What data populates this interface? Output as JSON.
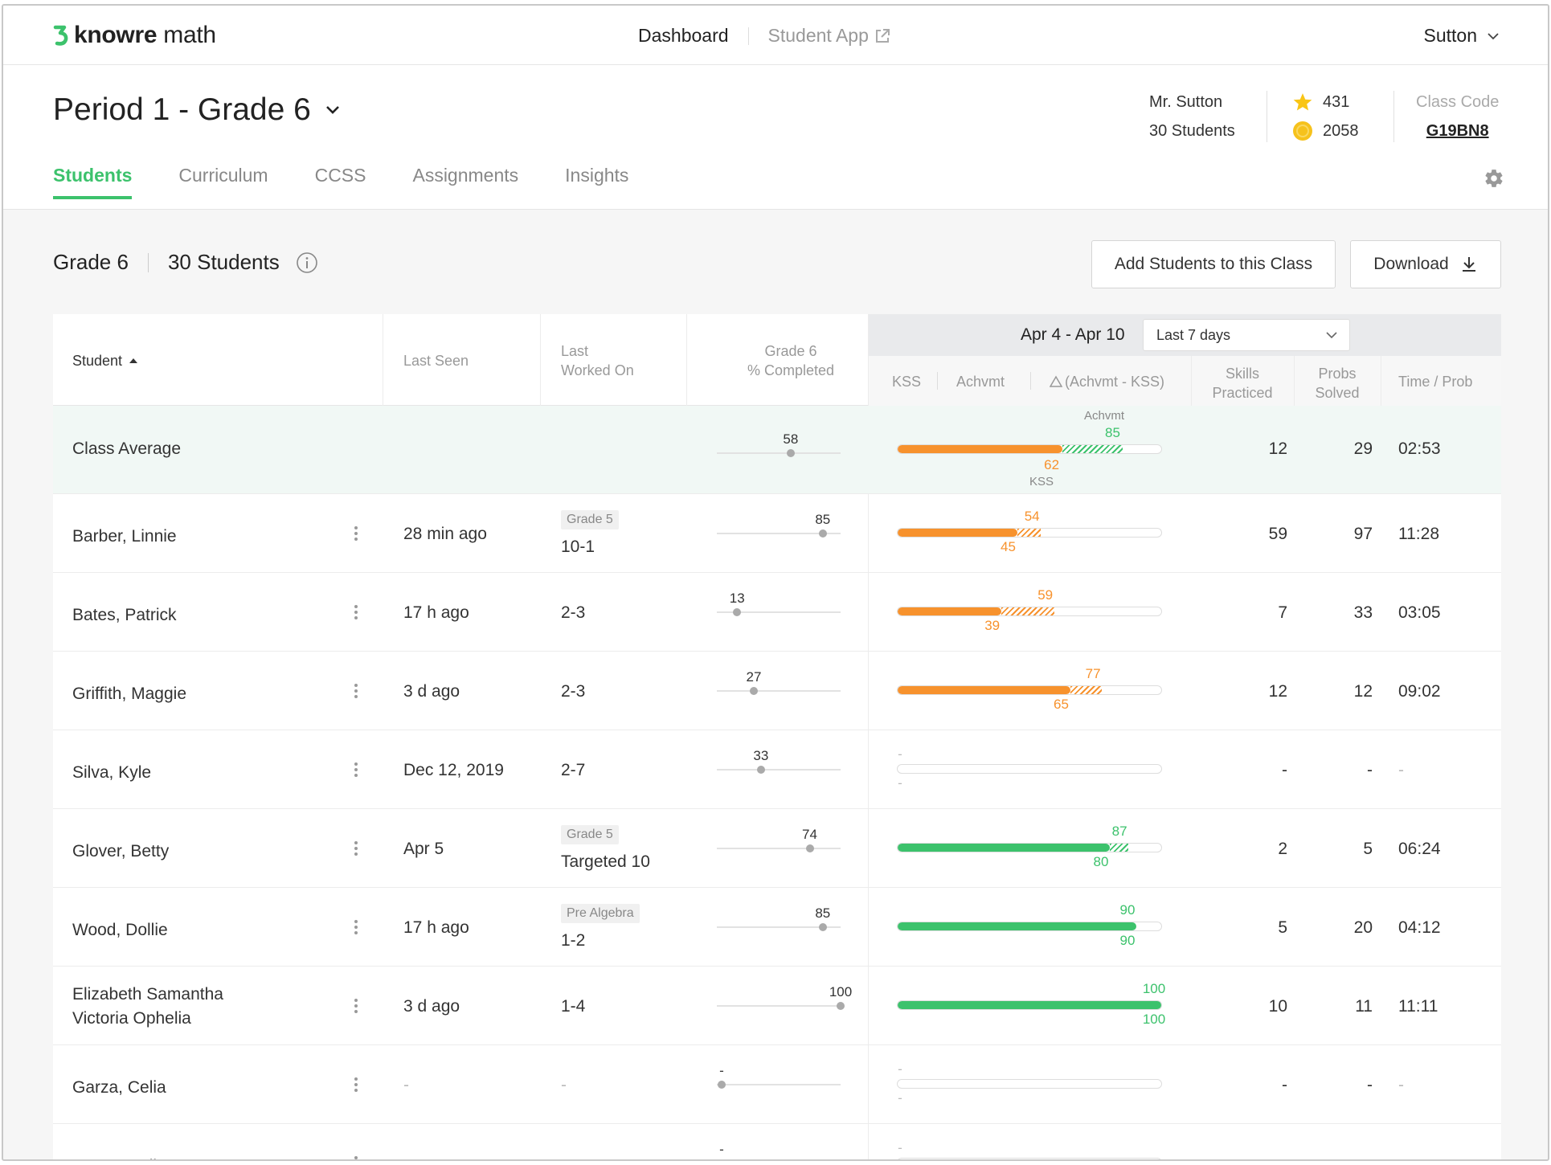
{
  "brand": {
    "name_bold": "knowre",
    "name_rest": " math"
  },
  "nav": {
    "dashboard": "Dashboard",
    "student_app": "Student App",
    "user": "Sutton"
  },
  "class": {
    "title": "Period 1 - Grade 6",
    "teacher": "Mr. Sutton",
    "students": "30 Students",
    "stars": "431",
    "coins": "2058",
    "code_label": "Class Code",
    "code": "G19BN8"
  },
  "tabs": [
    "Students",
    "Curriculum",
    "CCSS",
    "Assignments",
    "Insights"
  ],
  "section": {
    "grade": "Grade 6",
    "count": "30 Students"
  },
  "buttons": {
    "add": "Add Students to this Class",
    "download": "Download"
  },
  "colors": {
    "green": "#3cc26c",
    "orange": "#f7922d",
    "star": "#f9c516",
    "coin": "#f6c21c"
  },
  "table": {
    "headers": {
      "student": "Student",
      "last_seen": "Last Seen",
      "last_worked_1": "Last",
      "last_worked_2": "Worked On",
      "grade_1": "Grade 6",
      "grade_2": "% Completed",
      "range": "Apr 4 - Apr 10",
      "range_select": "Last 7 days",
      "kss": "KSS",
      "achvmt": "Achvmt",
      "delta": "(Achvmt - KSS)",
      "skills_1": "Skills",
      "skills_2": "Practiced",
      "probs_1": "Probs",
      "probs_2": "Solved",
      "time": "Time / Prob"
    },
    "average": {
      "label": "Class Average",
      "completed": 58,
      "kss": 62,
      "achvmt": 85,
      "achvmt_label": "Achvmt",
      "kss_label": "KSS",
      "skills": "12",
      "probs": "29",
      "time": "02:53"
    },
    "rows": [
      {
        "name": "Barber, Linnie",
        "seen": "28 min ago",
        "badge": "Grade 5",
        "worked": "10-1",
        "completed": 85,
        "kss": 45,
        "achvmt": 54,
        "color": "orange",
        "skills": "59",
        "probs": "97",
        "time": "11:28"
      },
      {
        "name": "Bates, Patrick",
        "seen": "17 h ago",
        "badge": "",
        "worked": "2-3",
        "completed": 13,
        "kss": 39,
        "achvmt": 59,
        "color": "orange",
        "skills": "7",
        "probs": "33",
        "time": "03:05"
      },
      {
        "name": "Griffith, Maggie",
        "seen": "3 d ago",
        "badge": "",
        "worked": "2-3",
        "completed": 27,
        "kss": 65,
        "achvmt": 77,
        "color": "orange",
        "skills": "12",
        "probs": "12",
        "time": "09:02"
      },
      {
        "name": "Silva, Kyle",
        "seen": "Dec 12, 2019",
        "badge": "",
        "worked": "2-7",
        "completed": 33,
        "kss": null,
        "achvmt": null,
        "color": "",
        "skills": "-",
        "probs": "-",
        "time": "-"
      },
      {
        "name": "Glover, Betty",
        "seen": "Apr 5",
        "badge": "Grade 5",
        "worked": "Targeted 10",
        "completed": 74,
        "kss": 80,
        "achvmt": 87,
        "color": "green",
        "skills": "2",
        "probs": "5",
        "time": "06:24"
      },
      {
        "name": "Wood, Dollie",
        "seen": "17 h ago",
        "badge": "Pre Algebra",
        "worked": "1-2",
        "completed": 85,
        "kss": 90,
        "achvmt": 90,
        "color": "green",
        "skills": "5",
        "probs": "20",
        "time": "04:12"
      },
      {
        "name": "Elizabeth Samantha Victoria Ophelia",
        "seen": "3 d ago",
        "badge": "",
        "worked": "1-4",
        "completed": 100,
        "kss": 100,
        "achvmt": 100,
        "color": "green",
        "skills": "10",
        "probs": "11",
        "time": "11:11"
      },
      {
        "name": "Garza, Celia",
        "seen": "-",
        "badge": "",
        "worked": "-",
        "completed": null,
        "kss": null,
        "achvmt": null,
        "color": "",
        "skills": "-",
        "probs": "-",
        "time": "-"
      },
      {
        "name": "Garza, Celia",
        "seen": "-",
        "badge": "",
        "worked": "-",
        "completed": null,
        "kss": null,
        "achvmt": null,
        "color": "",
        "skills": "-",
        "probs": "-",
        "time": "-"
      }
    ]
  }
}
